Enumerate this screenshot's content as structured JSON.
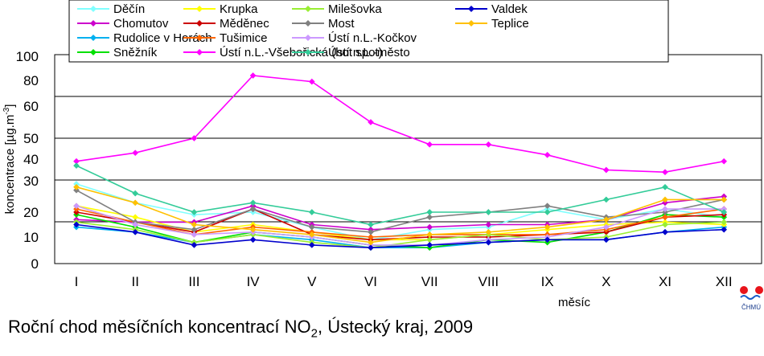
{
  "caption": {
    "prefix": "Roční chod měsíčních koncentrací NO",
    "subscript": "2",
    "suffix": ", Ústecký kraj, 2009"
  },
  "logo_text": "ČHMÚ",
  "chart_data": {
    "type": "line",
    "title": "Roční chod měsíčních koncentrací NO2, Ústecký kraj, 2009",
    "xlabel": "měsíc",
    "ylabel": "koncentrace [µg.m-3]",
    "ylabel_parts": {
      "main": "koncentrace [µg.m",
      "sup": "-3",
      "end": "]"
    },
    "categories": [
      "I",
      "II",
      "III",
      "IV",
      "V",
      "VI",
      "VII",
      "VIII",
      "IX",
      "X",
      "XI",
      "XII"
    ],
    "y_tick_labels": [
      "0",
      "10",
      "20",
      "30",
      "40",
      "50",
      "60",
      "80",
      "100"
    ],
    "grid": true,
    "legend_position": "top",
    "series": [
      {
        "name": "Děčín",
        "color": "#80ffff",
        "values": [
          29,
          23,
          19,
          20,
          14,
          9,
          13,
          14,
          21,
          17,
          21,
          18
        ]
      },
      {
        "name": "Chomutov",
        "color": "#cc00cc",
        "values": [
          17,
          16,
          16,
          22,
          15,
          13,
          14,
          15,
          15,
          17,
          23,
          25
        ]
      },
      {
        "name": "Rudolice v Horách",
        "color": "#00b0f0",
        "values": [
          14,
          12,
          8,
          11,
          9,
          6,
          6,
          8,
          9,
          9,
          12,
          14
        ]
      },
      {
        "name": "Sněžník",
        "color": "#00e000",
        "values": [
          19,
          14,
          8,
          12,
          10,
          7,
          6,
          9,
          8,
          12,
          19,
          18
        ]
      },
      {
        "name": "Krupka",
        "color": "#ffff00",
        "values": [
          22,
          18,
          12,
          15,
          12,
          9,
          9,
          11,
          13,
          15,
          16,
          15
        ]
      },
      {
        "name": "Měděnec",
        "color": "#cc0000",
        "values": [
          20,
          16,
          12,
          21,
          11,
          9,
          10,
          10,
          11,
          12,
          18,
          19
        ]
      },
      {
        "name": "Tušimice",
        "color": "#ff6600",
        "values": [
          21,
          16,
          11,
          14,
          12,
          10,
          11,
          11,
          11,
          13,
          18,
          21
        ]
      },
      {
        "name": "Ústí n.L.-Všebořická (hot spot)",
        "color": "#ff00ff",
        "values": [
          39,
          43,
          50,
          84,
          79,
          55,
          47,
          47,
          42,
          35,
          34,
          39
        ]
      },
      {
        "name": "Milešovka",
        "color": "#99ee33",
        "values": [
          16,
          13,
          8,
          11,
          8,
          6,
          9,
          11,
          9,
          10,
          15,
          16
        ]
      },
      {
        "name": "Most",
        "color": "#808080",
        "values": [
          27,
          16,
          13,
          21,
          14,
          12,
          18,
          20,
          22,
          18,
          20,
          24
        ]
      },
      {
        "name": "Ústí n.L.-Kočkov",
        "color": "#cc99ff",
        "values": [
          22,
          15,
          11,
          12,
          10,
          7,
          7,
          9,
          10,
          14,
          21,
          21
        ]
      },
      {
        "name": "Ústí n.L.-město",
        "color": "#33cc99",
        "values": [
          37,
          26,
          20,
          23,
          20,
          15,
          20,
          20,
          20,
          24,
          28,
          20
        ]
      },
      {
        "name": "Valdek",
        "color": "#0000cc",
        "values": [
          15,
          12,
          7,
          9,
          7,
          6,
          7,
          8,
          9,
          9,
          12,
          13
        ]
      },
      {
        "name": "Teplice",
        "color": "#ffc000",
        "values": [
          28,
          23,
          15,
          13,
          11,
          8,
          11,
          12,
          14,
          17,
          24,
          24
        ]
      }
    ]
  }
}
